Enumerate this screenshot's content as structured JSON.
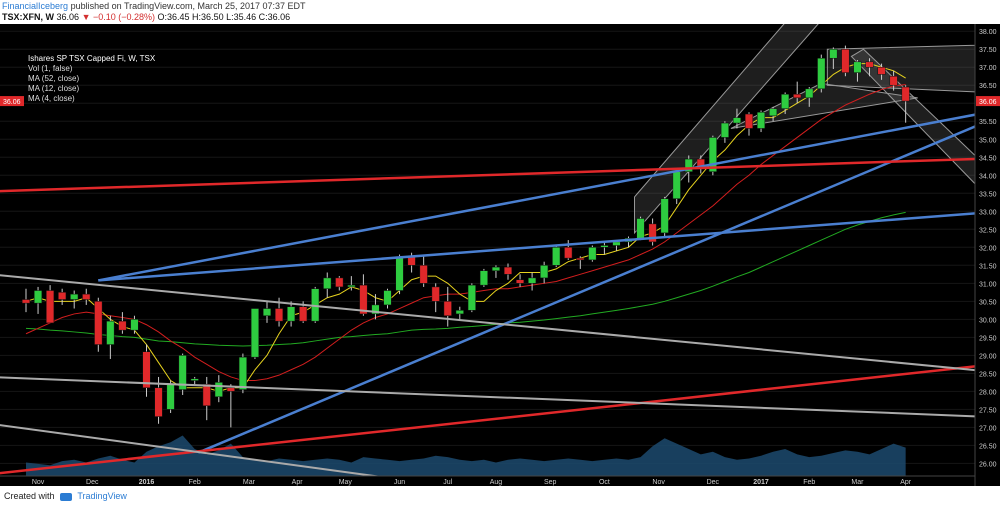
{
  "header": {
    "publisher": "FinancialIceberg",
    "published_text": "published on TradingView.com, March 25, 2017 07:37 EDT",
    "symbol": "TSX:XFN, W",
    "price": "36.06",
    "change": "▼ −0.10 (−0.28%)",
    "ohlc": "O:36.45 H:36.50 L:35.46 C:36.06"
  },
  "legend": {
    "title": "Ishares SP TSX Capped Fi, W, TSX",
    "vol": "Vol (1, false)",
    "ma52": "MA (52, close)",
    "ma12": "MA (12, close)",
    "ma4": "MA (4, close)"
  },
  "footer": {
    "created_with": "Created with",
    "brand": "TradingView"
  },
  "colors": {
    "up": "#2ecc40",
    "down": "#e0282a",
    "ma52": "#22aa22",
    "ma12": "#d21e1e",
    "ma4": "#e6d21e",
    "blue_line": "#4a7fd0",
    "red_line": "#e0282a",
    "gray_line": "#aaaaaa",
    "volume": "#1c4a6e",
    "price_tag": "#e0282a"
  },
  "chart_data": {
    "type": "candlestick",
    "title": "Ishares SP TSX Capped Fi, W, TSX",
    "y_axis": {
      "range": [
        25.65,
        38.2
      ],
      "ticks": [
        "38.00",
        "37.50",
        "37.00",
        "36.50",
        "36.00",
        "35.50",
        "35.00",
        "34.50",
        "34.00",
        "33.50",
        "33.00",
        "32.50",
        "32.00",
        "31.50",
        "31.00",
        "30.50",
        "30.00",
        "29.50",
        "29.00",
        "28.50",
        "28.00",
        "27.50",
        "27.00",
        "26.50",
        "26.00"
      ]
    },
    "x_axis": {
      "labels": [
        "Nov",
        "Dec",
        "2016",
        "Feb",
        "Mar",
        "Apr",
        "May",
        "Jun",
        "Jul",
        "Aug",
        "Sep",
        "Oct",
        "Nov",
        "Dec",
        "2017",
        "Feb",
        "Mar",
        "Apr"
      ],
      "label_week": [
        1,
        5.5,
        10,
        14,
        18.5,
        22.5,
        26.5,
        31,
        35,
        39,
        43.5,
        48,
        52.5,
        57,
        61,
        65,
        69,
        73
      ]
    },
    "last_price_tag": "36.06",
    "candles": [
      [
        30.55,
        30.85,
        30.2,
        30.45
      ],
      [
        30.45,
        30.9,
        30.15,
        30.8
      ],
      [
        30.8,
        30.95,
        29.9,
        29.9
      ],
      [
        30.75,
        30.85,
        30.4,
        30.55
      ],
      [
        30.55,
        30.8,
        30.3,
        30.7
      ],
      [
        30.7,
        30.85,
        30.4,
        30.55
      ],
      [
        30.5,
        30.6,
        29.1,
        29.3
      ],
      [
        29.3,
        30.1,
        28.9,
        29.95
      ],
      [
        29.95,
        30.2,
        29.6,
        29.7
      ],
      [
        29.7,
        30.1,
        29.6,
        30.0
      ],
      [
        29.1,
        29.3,
        27.85,
        28.1
      ],
      [
        28.1,
        28.4,
        27.1,
        27.3
      ],
      [
        27.5,
        28.3,
        27.4,
        28.2
      ],
      [
        28.05,
        29.05,
        27.9,
        29.0
      ],
      [
        28.3,
        28.4,
        28.2,
        28.35
      ],
      [
        28.2,
        28.4,
        27.2,
        27.6
      ],
      [
        27.85,
        28.45,
        27.7,
        28.25
      ],
      [
        28.1,
        28.2,
        27.0,
        28.0
      ],
      [
        28.05,
        29.05,
        27.95,
        28.95
      ],
      [
        28.95,
        30.3,
        28.9,
        30.3
      ],
      [
        30.1,
        30.5,
        29.9,
        30.3
      ],
      [
        30.3,
        30.6,
        29.8,
        29.95
      ],
      [
        29.95,
        30.5,
        29.8,
        30.35
      ],
      [
        30.35,
        30.5,
        29.9,
        29.95
      ],
      [
        29.95,
        30.9,
        29.9,
        30.85
      ],
      [
        30.85,
        31.3,
        30.6,
        31.15
      ],
      [
        31.15,
        31.2,
        30.8,
        30.9
      ],
      [
        30.9,
        31.2,
        30.8,
        30.95
      ],
      [
        30.95,
        31.25,
        30.1,
        30.15
      ],
      [
        30.15,
        30.7,
        30.0,
        30.4
      ],
      [
        30.4,
        30.85,
        30.3,
        30.8
      ],
      [
        30.8,
        31.8,
        30.7,
        31.75
      ],
      [
        31.75,
        31.85,
        31.3,
        31.5
      ],
      [
        31.5,
        31.8,
        30.9,
        31.0
      ],
      [
        30.9,
        31.0,
        30.2,
        30.5
      ],
      [
        30.5,
        30.9,
        29.8,
        30.1
      ],
      [
        30.15,
        30.35,
        30.0,
        30.25
      ],
      [
        30.25,
        31.0,
        30.2,
        30.95
      ],
      [
        30.95,
        31.4,
        30.9,
        31.35
      ],
      [
        31.35,
        31.5,
        31.15,
        31.45
      ],
      [
        31.45,
        31.55,
        31.1,
        31.25
      ],
      [
        31.1,
        31.25,
        30.9,
        31.0
      ],
      [
        31.0,
        31.3,
        30.8,
        31.15
      ],
      [
        31.15,
        31.6,
        31.0,
        31.5
      ],
      [
        31.5,
        32.05,
        31.45,
        32.0
      ],
      [
        32.0,
        32.2,
        31.65,
        31.7
      ],
      [
        31.7,
        31.75,
        31.4,
        31.65
      ],
      [
        31.65,
        32.05,
        31.6,
        32.0
      ],
      [
        32.0,
        32.15,
        31.8,
        32.05
      ],
      [
        32.05,
        32.2,
        31.9,
        32.15
      ],
      [
        32.15,
        32.3,
        32.0,
        32.25
      ],
      [
        32.25,
        32.85,
        32.2,
        32.8
      ],
      [
        32.65,
        32.8,
        32.05,
        32.15
      ],
      [
        32.4,
        33.4,
        32.3,
        33.35
      ],
      [
        33.35,
        34.2,
        33.2,
        34.1
      ],
      [
        34.1,
        34.55,
        33.8,
        34.45
      ],
      [
        34.45,
        34.55,
        34.05,
        34.2
      ],
      [
        34.1,
        35.1,
        34.0,
        35.05
      ],
      [
        35.05,
        35.5,
        34.9,
        35.45
      ],
      [
        35.45,
        35.85,
        35.3,
        35.6
      ],
      [
        35.7,
        35.75,
        35.1,
        35.3
      ],
      [
        35.3,
        35.8,
        35.2,
        35.75
      ],
      [
        35.65,
        35.9,
        35.5,
        35.85
      ],
      [
        35.85,
        36.3,
        35.7,
        36.25
      ],
      [
        36.25,
        36.6,
        36.0,
        36.15
      ],
      [
        36.15,
        36.45,
        35.9,
        36.4
      ],
      [
        36.4,
        37.35,
        36.3,
        37.25
      ],
      [
        37.25,
        37.55,
        36.95,
        37.5
      ],
      [
        37.5,
        37.6,
        36.75,
        36.85
      ],
      [
        36.85,
        37.2,
        36.6,
        37.15
      ],
      [
        37.15,
        37.25,
        36.75,
        37.0
      ],
      [
        37.0,
        37.1,
        36.65,
        36.8
      ],
      [
        36.75,
        36.9,
        36.35,
        36.5
      ],
      [
        36.45,
        36.5,
        35.46,
        36.06
      ]
    ],
    "volume": [
      10,
      9,
      8,
      11,
      12,
      10,
      13,
      15,
      12,
      10,
      18,
      22,
      25,
      30,
      20,
      16,
      19,
      24,
      14,
      12,
      11,
      13,
      12,
      11,
      12,
      13,
      12,
      10,
      14,
      13,
      12,
      11,
      12,
      13,
      15,
      14,
      12,
      11,
      12,
      10,
      12,
      13,
      12,
      11,
      12,
      13,
      12,
      11,
      12,
      13,
      12,
      14,
      22,
      28,
      24,
      20,
      16,
      18,
      14,
      12,
      13,
      15,
      18,
      20,
      16,
      14,
      15,
      17,
      19,
      18,
      16,
      20,
      24,
      21
    ],
    "ma52": [
      29.75,
      29.73,
      29.7,
      29.68,
      29.65,
      29.62,
      29.58,
      29.55,
      29.52,
      29.5,
      29.45,
      29.4,
      29.38,
      29.35,
      29.32,
      29.3,
      29.28,
      29.27,
      29.26,
      29.27,
      29.28,
      29.3,
      29.32,
      29.35,
      29.4,
      29.45,
      29.5,
      29.52,
      29.55,
      29.58,
      29.6,
      29.65,
      29.7,
      29.72,
      29.73,
      29.75,
      29.78,
      29.8,
      29.83,
      29.86,
      29.9,
      29.92,
      29.95,
      29.98,
      30.02,
      30.06,
      30.1,
      30.15,
      30.2,
      30.25,
      30.3,
      30.36,
      30.42,
      30.5,
      30.6,
      30.7,
      30.8,
      30.92,
      31.05,
      31.18,
      31.3,
      31.45,
      31.6,
      31.75,
      31.9,
      32.05,
      32.2,
      32.35,
      32.5,
      32.62,
      32.72,
      32.82,
      32.9,
      32.97
    ],
    "ma12": [
      29.6,
      29.75,
      29.9,
      30.05,
      30.15,
      30.2,
      30.15,
      30.1,
      30.05,
      30.0,
      29.85,
      29.65,
      29.4,
      29.2,
      28.95,
      28.75,
      28.55,
      28.4,
      28.3,
      28.3,
      28.35,
      28.45,
      28.6,
      28.75,
      28.95,
      29.2,
      29.45,
      29.7,
      29.9,
      30.05,
      30.15,
      30.3,
      30.45,
      30.6,
      30.65,
      30.7,
      30.7,
      30.75,
      30.8,
      30.85,
      30.85,
      30.9,
      30.95,
      31.0,
      31.05,
      31.15,
      31.25,
      31.35,
      31.45,
      31.55,
      31.65,
      31.8,
      31.95,
      32.15,
      32.4,
      32.65,
      32.9,
      33.15,
      33.45,
      33.75,
      34.0,
      34.3,
      34.55,
      34.8,
      35.05,
      35.3,
      35.55,
      35.75,
      35.95,
      36.1,
      36.25,
      36.38,
      36.48,
      36.52
    ],
    "ma4": [
      30.5,
      30.6,
      30.5,
      30.5,
      30.5,
      30.6,
      30.3,
      30.0,
      29.8,
      29.7,
      29.3,
      28.8,
      28.3,
      28.1,
      28.1,
      28.1,
      28.0,
      28.1,
      28.1,
      28.6,
      29.0,
      29.6,
      30.1,
      30.2,
      30.4,
      30.6,
      30.7,
      30.9,
      30.8,
      30.6,
      30.5,
      30.8,
      31.1,
      31.2,
      31.2,
      31.0,
      30.7,
      30.5,
      30.5,
      30.8,
      31.0,
      31.3,
      31.3,
      31.3,
      31.4,
      31.6,
      31.7,
      31.8,
      31.8,
      31.9,
      32.0,
      32.3,
      32.4,
      32.6,
      33.1,
      33.6,
      34.0,
      34.4,
      34.7,
      35.1,
      35.4,
      35.6,
      35.6,
      35.8,
      36.0,
      36.2,
      36.5,
      36.8,
      37.0,
      37.1,
      37.1,
      37.0,
      36.9,
      36.7
    ],
    "trendlines": [
      {
        "color": "blue_line",
        "p1": [
          6,
          31.08
        ],
        "p2": [
          83,
          35.95
        ]
      },
      {
        "color": "blue_line",
        "p1": [
          6,
          31.08
        ],
        "p2": [
          83,
          33.05
        ]
      },
      {
        "color": "blue_line",
        "p1": [
          14.3,
          26.3
        ],
        "p2": [
          83,
          35.95
        ]
      },
      {
        "color": "red_line",
        "p1": [
          -3,
          33.55
        ],
        "p2": [
          83,
          34.5
        ]
      },
      {
        "color": "red_line",
        "p1": [
          -3,
          25.7
        ],
        "p2": [
          83,
          28.85
        ]
      },
      {
        "color": "gray_line",
        "p1": [
          -3,
          31.25
        ],
        "p2": [
          83,
          28.45
        ]
      },
      {
        "color": "gray_line",
        "p1": [
          -3,
          28.4
        ],
        "p2": [
          83,
          27.25
        ]
      },
      {
        "color": "gray_line",
        "p1": [
          -3,
          27.1
        ],
        "p2": [
          30,
          25.6
        ]
      }
    ],
    "channels": [
      {
        "line_a": [
          [
            50.5,
            32.4
          ],
          [
            66,
            38.3
          ]
        ],
        "line_b": [
          [
            50.5,
            33.4
          ],
          [
            66,
            39.4
          ]
        ]
      },
      {
        "line_a": [
          [
            58.5,
            35.3
          ],
          [
            74,
            36.15
          ]
        ],
        "line_b": [
          [
            58.5,
            35.3
          ],
          [
            66,
            36.55
          ]
        ]
      },
      {
        "line_a": [
          [
            66.5,
            37.5
          ],
          [
            83,
            37.65
          ]
        ],
        "line_b": [
          [
            66.5,
            36.5
          ],
          [
            83,
            36.25
          ]
        ]
      },
      {
        "line_a": [
          [
            68.5,
            37.3
          ],
          [
            83,
            32.3
          ]
        ],
        "line_b": [
          [
            69.5,
            37.5
          ],
          [
            83,
            33.2
          ]
        ]
      }
    ]
  }
}
